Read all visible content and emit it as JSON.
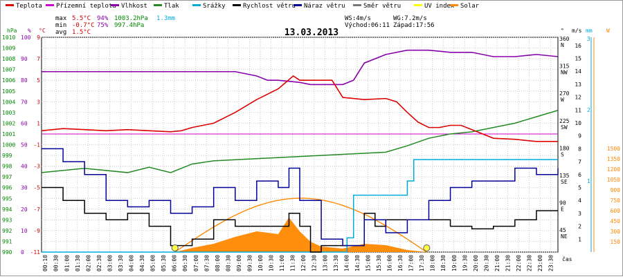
{
  "chart_data": {
    "type": "line",
    "date": "13.03.2013",
    "legend": [
      {
        "label": "Teplota",
        "color": "#dd0000"
      },
      {
        "label": "Přízemní teplota",
        "color": "#cc00cc"
      },
      {
        "label": "Vlhkost",
        "color": "#8800aa"
      },
      {
        "label": "Tlak",
        "color": "#228822"
      },
      {
        "label": "Srážky",
        "color": "#00aadd"
      },
      {
        "label": "Rychlost větru",
        "color": "#000000"
      },
      {
        "label": "Náraz větru",
        "color": "#000099"
      },
      {
        "label": "Směr větru",
        "color": "#777777"
      },
      {
        "label": "UV index",
        "color": "#ffff00"
      },
      {
        "label": "Solar",
        "color": "#ff8800"
      }
    ],
    "stats": {
      "max": {
        "label": "max",
        "temp": "5.5°C",
        "hum": "94%",
        "press": "1003.2hPa",
        "rain": "1.3mm"
      },
      "min": {
        "label": "min",
        "temp": "-0.7°C",
        "hum": "75%",
        "press": "997.4hPa"
      },
      "avg": {
        "label": "avg",
        "temp": "1.5°C"
      }
    },
    "wind_info": {
      "ws": "WS:4m/s",
      "wg": "WG:7.2m/s",
      "sunrise": "Východ:06:11",
      "sunset": "Západ:17:56"
    },
    "axes": {
      "hpa": {
        "title": "hPa",
        "ticks": [
          "1010",
          "1009",
          "1008",
          "1007",
          "1006",
          "1005",
          "1004",
          "1003",
          "1002",
          "1001",
          "1000",
          "999",
          "998",
          "997",
          "996",
          "995",
          "994",
          "993",
          "992",
          "991",
          "990"
        ]
      },
      "pct": {
        "title": "%",
        "ticks": [
          "100",
          "90",
          "80",
          "70",
          "60",
          "50",
          "40",
          "30",
          "20",
          "10",
          "0"
        ]
      },
      "temp": {
        "title": "°C",
        "ticks": [
          "9",
          "7",
          "5",
          "3",
          "1",
          "-1",
          "-3",
          "-5",
          "-7",
          "-9",
          "-11"
        ]
      },
      "dir": {
        "title": "°",
        "ticks": [
          "360",
          "315",
          "270",
          "225",
          "180",
          "135",
          "90",
          "45"
        ],
        "labels": [
          "N",
          "NW",
          "W",
          "SW",
          "S",
          "SE",
          "E",
          "NE"
        ]
      },
      "ms": {
        "title": "m/s",
        "ticks": [
          "16",
          "15",
          "14",
          "13",
          "12",
          "11",
          "10",
          "9",
          "8",
          "7",
          "6",
          "5",
          "4",
          "3",
          "2",
          "1"
        ]
      },
      "mm": {
        "title": "mm",
        "ticks": [
          "3",
          "2",
          "1"
        ]
      },
      "w": {
        "title": "W",
        "ticks": [
          "1500",
          "1350",
          "1200",
          "1050",
          "900",
          "750",
          "600",
          "450",
          "300",
          "150"
        ]
      },
      "x_title": "čas",
      "x_ticks": [
        "00:10",
        "00:30",
        "01:00",
        "01:30",
        "02:00",
        "02:30",
        "03:00",
        "03:30",
        "04:00",
        "04:30",
        "05:00",
        "05:30",
        "06:00",
        "06:30",
        "07:00",
        "07:30",
        "08:00",
        "08:30",
        "09:00",
        "09:30",
        "10:00",
        "10:30",
        "11:00",
        "11:30",
        "12:00",
        "12:30",
        "13:00",
        "13:30",
        "14:00",
        "14:30",
        "15:00",
        "15:30",
        "16:00",
        "16:30",
        "17:00",
        "17:30",
        "18:00",
        "18:30",
        "19:00",
        "19:30",
        "20:00",
        "20:30",
        "21:00",
        "21:30",
        "22:00",
        "22:30",
        "23:00",
        "23:30"
      ]
    },
    "series": [
      {
        "name": "Teplota",
        "unit": "°C",
        "t": [
          0,
          1,
          2,
          3,
          4,
          5,
          6,
          6.5,
          7,
          8,
          9,
          10,
          11,
          11.7,
          12,
          13,
          13.5,
          14,
          15,
          16,
          16.5,
          17,
          17.5,
          18,
          18.5,
          19,
          19.5,
          20,
          21,
          22,
          23,
          24
        ],
        "values": [
          0.3,
          0.5,
          0.4,
          0.3,
          0.4,
          0.3,
          0.2,
          0.3,
          0.6,
          1.0,
          2.0,
          3.2,
          4.2,
          5.4,
          5.0,
          5.0,
          5.0,
          3.4,
          3.2,
          3.3,
          3.0,
          2.0,
          1.1,
          0.6,
          0.6,
          0.8,
          0.8,
          0.4,
          -0.4,
          -0.5,
          -0.7,
          -0.7
        ]
      },
      {
        "name": "Přízemní teplota",
        "unit": "°C",
        "t": [
          0,
          24
        ],
        "values": [
          0,
          0
        ]
      },
      {
        "name": "Vlhkost",
        "unit": "%",
        "t": [
          0,
          1,
          2,
          3,
          4,
          5,
          6,
          7,
          8,
          9,
          10,
          10.5,
          11,
          12,
          12.5,
          13,
          14,
          14.5,
          15,
          16,
          17,
          18,
          19,
          20,
          21,
          22,
          23,
          24
        ],
        "values": [
          84,
          84,
          84,
          84,
          84,
          84,
          84,
          84,
          84,
          84,
          82,
          80,
          80,
          79,
          78,
          78,
          78,
          80,
          88,
          92,
          94,
          94,
          93,
          93,
          91,
          91,
          92,
          91
        ]
      },
      {
        "name": "Tlak",
        "unit": "hPa",
        "t": [
          0,
          2,
          4,
          5,
          6,
          7,
          8,
          10,
          12,
          14,
          16,
          17,
          18,
          19,
          20,
          22,
          24
        ],
        "values": [
          997.4,
          997.8,
          997.4,
          997.9,
          997.4,
          998.2,
          998.5,
          998.7,
          998.9,
          999.1,
          999.3,
          999.9,
          1000.6,
          1001.0,
          1001.2,
          1002.0,
          1003.2
        ]
      },
      {
        "name": "Srážky",
        "unit": "mm",
        "t": [
          0,
          14,
          14.2,
          14.5,
          15.5,
          16.5,
          17,
          17.3,
          24
        ],
        "values": [
          0,
          0,
          0.2,
          0.8,
          0.8,
          0.8,
          1.0,
          1.3,
          1.3
        ]
      },
      {
        "name": "Rychlost větru",
        "unit": "m/s",
        "t": [
          0,
          1,
          2,
          3,
          4,
          5,
          6,
          7,
          8,
          9,
          10,
          11,
          11.5,
          12,
          12.5,
          13,
          14,
          15,
          15.5,
          16,
          17,
          18,
          19,
          20,
          21,
          22,
          23,
          24
        ],
        "values": [
          5,
          4,
          3,
          2.5,
          3,
          2,
          0.5,
          1,
          2.5,
          2,
          2,
          2,
          3,
          2,
          0,
          0.5,
          0.5,
          3,
          2,
          2.5,
          2.5,
          2.5,
          2,
          1.8,
          2,
          2.5,
          3.2,
          3.2
        ]
      },
      {
        "name": "Náraz větru",
        "unit": "m/s",
        "t": [
          0,
          1,
          2,
          3,
          4,
          5,
          6,
          7,
          8,
          9,
          10,
          11,
          11.5,
          12,
          13,
          14,
          15,
          16,
          17,
          18,
          19,
          20,
          21,
          22,
          23,
          24
        ],
        "values": [
          8,
          7,
          6,
          4,
          3.5,
          4,
          3,
          3.5,
          5,
          4,
          5.5,
          5,
          6.5,
          4,
          1,
          0.5,
          2.5,
          1.5,
          2.5,
          4,
          5,
          5.5,
          5.5,
          6.5,
          6,
          6.5
        ]
      },
      {
        "name": "Solar",
        "unit": "W",
        "t": [
          6.2,
          7,
          8,
          9,
          10,
          11,
          11.5,
          12,
          12.5,
          13,
          14,
          15,
          16,
          17,
          17.9
        ],
        "values": [
          0,
          60,
          120,
          220,
          300,
          260,
          500,
          300,
          150,
          80,
          50,
          120,
          100,
          30,
          0
        ]
      }
    ],
    "sunrise_hour": 6.2,
    "sunset_hour": 17.9,
    "solar_curve_peak": 780
  }
}
